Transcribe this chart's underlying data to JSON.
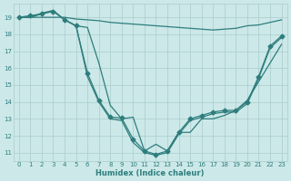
{
  "xlabel": "Humidex (Indice chaleur)",
  "ylabel": "",
  "xlim": [
    -0.5,
    23.5
  ],
  "ylim": [
    10.5,
    19.8
  ],
  "yticks": [
    11,
    12,
    13,
    14,
    15,
    16,
    17,
    18,
    19
  ],
  "xticks": [
    0,
    1,
    2,
    3,
    4,
    5,
    6,
    7,
    8,
    9,
    10,
    11,
    12,
    13,
    14,
    15,
    16,
    17,
    18,
    19,
    20,
    21,
    22,
    23
  ],
  "bg_color": "#cce8e8",
  "line_color": "#2e7d7d",
  "grid_color": "#aacccc",
  "lines": [
    {
      "x": [
        0,
        1,
        2,
        3,
        4,
        5,
        6,
        7,
        8,
        9,
        10,
        11,
        12,
        13,
        14,
        15,
        16,
        17,
        18,
        19,
        20,
        21,
        22,
        23
      ],
      "y": [
        19.0,
        19.0,
        19.0,
        19.0,
        19.0,
        18.9,
        18.85,
        18.8,
        18.7,
        18.65,
        18.6,
        18.55,
        18.5,
        18.45,
        18.4,
        18.35,
        18.3,
        18.25,
        18.3,
        18.35,
        18.5,
        18.55,
        18.7,
        18.85
      ],
      "has_markers": false
    },
    {
      "x": [
        0,
        1,
        2,
        3,
        4,
        5,
        6,
        7,
        8,
        9,
        10,
        11,
        12,
        13,
        14,
        15,
        16,
        17,
        18,
        19,
        20,
        21,
        22,
        23
      ],
      "y": [
        19.0,
        19.1,
        19.2,
        19.35,
        18.85,
        18.5,
        15.7,
        14.1,
        13.1,
        13.05,
        11.8,
        11.1,
        10.9,
        11.1,
        12.2,
        13.0,
        13.2,
        13.4,
        13.5,
        13.5,
        14.0,
        15.5,
        17.3,
        17.9
      ],
      "has_markers": true
    },
    {
      "x": [
        0,
        1,
        2,
        3,
        4,
        5,
        6,
        7,
        8,
        9,
        10,
        11,
        12,
        13,
        14,
        15,
        16,
        17,
        18,
        19,
        20,
        21,
        22,
        23
      ],
      "y": [
        19.0,
        19.0,
        19.25,
        19.4,
        18.85,
        18.5,
        15.5,
        14.0,
        13.0,
        12.9,
        11.6,
        11.0,
        10.85,
        11.0,
        12.1,
        12.9,
        13.1,
        13.3,
        13.4,
        13.4,
        13.9,
        15.4,
        17.2,
        17.8
      ],
      "has_markers": false
    },
    {
      "x": [
        0,
        1,
        2,
        3,
        4,
        5,
        6,
        7,
        8,
        9,
        10,
        11,
        12,
        13,
        14,
        15,
        16,
        17,
        18,
        19,
        20,
        21,
        22,
        23
      ],
      "y": [
        19.0,
        19.0,
        19.2,
        19.4,
        18.85,
        18.5,
        18.4,
        16.3,
        13.8,
        13.0,
        13.1,
        11.1,
        11.5,
        11.1,
        12.2,
        12.2,
        13.0,
        13.0,
        13.2,
        13.5,
        14.1,
        15.2,
        16.3,
        17.4
      ],
      "has_markers": false
    }
  ],
  "marker": "D",
  "markersize": 2.5,
  "linewidth": 0.9
}
